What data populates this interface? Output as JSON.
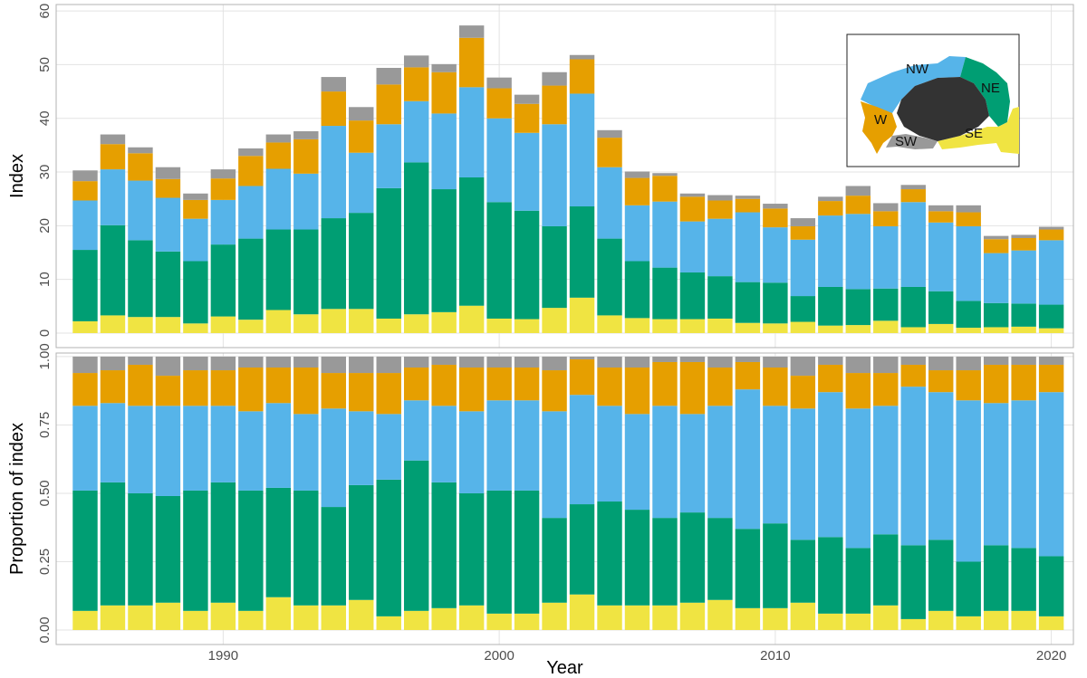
{
  "chart_data": [
    {
      "type": "stacked-bar",
      "ylabel": "Index",
      "x": [
        1985,
        1986,
        1987,
        1988,
        1989,
        1990,
        1991,
        1992,
        1993,
        1994,
        1995,
        1996,
        1997,
        1998,
        1999,
        2000,
        2001,
        2002,
        2003,
        2004,
        2005,
        2006,
        2007,
        2008,
        2009,
        2010,
        2011,
        2012,
        2013,
        2014,
        2015,
        2016,
        2017,
        2018,
        2019,
        2020
      ],
      "xlim": [
        1983.95,
        2020.8
      ],
      "ylim": [
        -2.7,
        61.2
      ],
      "yticks": [
        0,
        10,
        20,
        30,
        40,
        50,
        60
      ],
      "grid": true,
      "series": [
        {
          "name": "SE",
          "color": "#F0E442",
          "values": [
            2.2,
            3.3,
            3.0,
            3.0,
            1.8,
            3.1,
            2.5,
            4.3,
            3.5,
            4.5,
            4.5,
            2.7,
            3.5,
            3.9,
            5.1,
            2.7,
            2.6,
            4.7,
            6.6,
            3.3,
            2.8,
            2.6,
            2.6,
            2.7,
            1.9,
            1.8,
            2.1,
            1.4,
            1.5,
            2.3,
            1.1,
            1.7,
            1.0,
            1.1,
            1.2,
            0.9
          ]
        },
        {
          "name": "NE",
          "color": "#009E73",
          "values": [
            13.3,
            16.8,
            14.3,
            12.2,
            11.6,
            13.4,
            15.1,
            15.0,
            15.8,
            16.9,
            17.9,
            24.3,
            28.3,
            22.9,
            23.9,
            21.7,
            20.2,
            15.2,
            17.0,
            14.3,
            10.6,
            9.6,
            8.7,
            7.9,
            7.6,
            7.6,
            4.8,
            7.2,
            6.7,
            6.0,
            7.5,
            6.1,
            5.0,
            4.5,
            4.3,
            4.4
          ]
        },
        {
          "name": "NW",
          "color": "#56B4E9",
          "values": [
            9.2,
            10.4,
            11.1,
            10.0,
            7.9,
            8.3,
            9.8,
            11.3,
            10.4,
            17.2,
            11.2,
            11.9,
            11.4,
            14.1,
            16.8,
            15.6,
            14.5,
            19.0,
            21.0,
            13.3,
            10.4,
            12.3,
            9.5,
            10.7,
            13.0,
            10.3,
            10.5,
            13.3,
            14.0,
            11.6,
            15.8,
            12.8,
            13.9,
            9.3,
            9.9,
            12.0
          ]
        },
        {
          "name": "W",
          "color": "#E69F00",
          "values": [
            3.6,
            4.7,
            5.1,
            3.5,
            3.5,
            4.0,
            5.6,
            4.9,
            6.4,
            6.4,
            6.0,
            7.4,
            6.3,
            7.7,
            9.2,
            5.6,
            5.4,
            7.2,
            6.4,
            5.5,
            5.1,
            4.8,
            4.6,
            3.4,
            2.5,
            3.5,
            2.5,
            2.7,
            3.4,
            2.8,
            2.4,
            2.1,
            2.6,
            2.6,
            2.3,
            2.0
          ]
        },
        {
          "name": "SW",
          "color": "#999999",
          "values": [
            2.0,
            1.8,
            1.1,
            2.2,
            1.2,
            1.7,
            1.4,
            1.5,
            1.5,
            2.7,
            2.5,
            3.1,
            2.2,
            1.5,
            2.3,
            2.0,
            1.7,
            2.5,
            0.8,
            1.4,
            1.2,
            0.5,
            0.6,
            1.0,
            0.6,
            0.9,
            1.5,
            0.8,
            1.8,
            1.5,
            0.8,
            1.1,
            1.3,
            0.6,
            0.6,
            0.5
          ]
        }
      ]
    },
    {
      "type": "stacked-bar",
      "ylabel": "Proportion of index",
      "xlabel": "Year",
      "x": [
        1985,
        1986,
        1987,
        1988,
        1989,
        1990,
        1991,
        1992,
        1993,
        1994,
        1995,
        1996,
        1997,
        1998,
        1999,
        2000,
        2001,
        2002,
        2003,
        2004,
        2005,
        2006,
        2007,
        2008,
        2009,
        2010,
        2011,
        2012,
        2013,
        2014,
        2015,
        2016,
        2017,
        2018,
        2019,
        2020
      ],
      "xlim": [
        1983.95,
        2020.8
      ],
      "xticks": [
        1990,
        2000,
        2010,
        2020
      ],
      "ylim": [
        -0.053,
        1.013
      ],
      "yticks": [
        {
          "value": 0,
          "label": "0.00"
        },
        {
          "value": 0.25,
          "label": "0.25"
        },
        {
          "value": 0.5,
          "label": "0.50"
        },
        {
          "value": 0.75,
          "label": "0.75"
        },
        {
          "value": 1,
          "label": "1.00"
        }
      ],
      "grid": true,
      "series": [
        {
          "name": "SE",
          "color": "#F0E442",
          "values": [
            0.07,
            0.09,
            0.09,
            0.1,
            0.07,
            0.1,
            0.07,
            0.12,
            0.09,
            0.09,
            0.11,
            0.05,
            0.07,
            0.08,
            0.09,
            0.06,
            0.06,
            0.1,
            0.13,
            0.09,
            0.09,
            0.09,
            0.1,
            0.11,
            0.08,
            0.08,
            0.1,
            0.06,
            0.06,
            0.09,
            0.04,
            0.07,
            0.05,
            0.07,
            0.07,
            0.05
          ]
        },
        {
          "name": "NE",
          "color": "#009E73",
          "values": [
            0.44,
            0.45,
            0.41,
            0.39,
            0.44,
            0.44,
            0.44,
            0.4,
            0.42,
            0.36,
            0.42,
            0.5,
            0.55,
            0.46,
            0.41,
            0.45,
            0.45,
            0.31,
            0.33,
            0.38,
            0.35,
            0.32,
            0.33,
            0.3,
            0.29,
            0.31,
            0.23,
            0.28,
            0.24,
            0.26,
            0.27,
            0.26,
            0.2,
            0.24,
            0.23,
            0.22
          ]
        },
        {
          "name": "NW",
          "color": "#56B4E9",
          "values": [
            0.31,
            0.29,
            0.32,
            0.33,
            0.31,
            0.28,
            0.29,
            0.31,
            0.28,
            0.36,
            0.27,
            0.24,
            0.22,
            0.28,
            0.3,
            0.33,
            0.33,
            0.39,
            0.4,
            0.35,
            0.35,
            0.41,
            0.36,
            0.41,
            0.51,
            0.43,
            0.48,
            0.53,
            0.51,
            0.47,
            0.58,
            0.54,
            0.59,
            0.52,
            0.54,
            0.6
          ]
        },
        {
          "name": "W",
          "color": "#E69F00",
          "values": [
            0.12,
            0.12,
            0.15,
            0.11,
            0.13,
            0.13,
            0.16,
            0.13,
            0.17,
            0.13,
            0.14,
            0.15,
            0.12,
            0.15,
            0.16,
            0.12,
            0.12,
            0.15,
            0.13,
            0.14,
            0.17,
            0.16,
            0.19,
            0.14,
            0.1,
            0.14,
            0.12,
            0.1,
            0.13,
            0.12,
            0.08,
            0.08,
            0.11,
            0.14,
            0.13,
            0.1
          ]
        },
        {
          "name": "SW",
          "color": "#999999",
          "values": [
            0.06,
            0.05,
            0.03,
            0.07,
            0.05,
            0.05,
            0.04,
            0.04,
            0.04,
            0.06,
            0.06,
            0.06,
            0.04,
            0.03,
            0.04,
            0.04,
            0.04,
            0.05,
            0.01,
            0.04,
            0.04,
            0.02,
            0.02,
            0.04,
            0.02,
            0.04,
            0.07,
            0.03,
            0.06,
            0.06,
            0.03,
            0.05,
            0.05,
            0.03,
            0.03,
            0.03
          ]
        }
      ]
    }
  ]
}
